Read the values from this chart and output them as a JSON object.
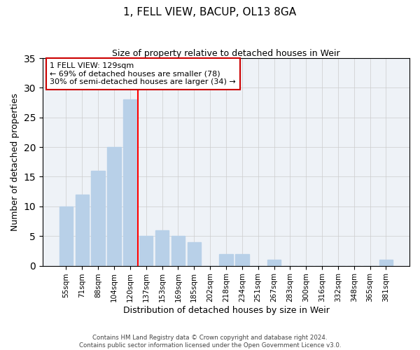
{
  "title": "1, FELL VIEW, BACUP, OL13 8GA",
  "subtitle": "Size of property relative to detached houses in Weir",
  "xlabel": "Distribution of detached houses by size in Weir",
  "ylabel": "Number of detached properties",
  "bar_color": "#b8d0e8",
  "bar_edge_color": "#b8d0e8",
  "vline_color": "red",
  "categories": [
    "55sqm",
    "71sqm",
    "88sqm",
    "104sqm",
    "120sqm",
    "137sqm",
    "153sqm",
    "169sqm",
    "185sqm",
    "202sqm",
    "218sqm",
    "234sqm",
    "251sqm",
    "267sqm",
    "283sqm",
    "300sqm",
    "316sqm",
    "332sqm",
    "348sqm",
    "365sqm",
    "381sqm"
  ],
  "values": [
    10,
    12,
    16,
    20,
    28,
    5,
    6,
    5,
    4,
    0,
    2,
    2,
    0,
    1,
    0,
    0,
    0,
    0,
    0,
    0,
    1
  ],
  "ylim": [
    0,
    35
  ],
  "yticks": [
    0,
    5,
    10,
    15,
    20,
    25,
    30,
    35
  ],
  "annotation_title": "1 FELL VIEW: 129sqm",
  "annotation_line1": "← 69% of detached houses are smaller (78)",
  "annotation_line2": "30% of semi-detached houses are larger (34) →",
  "annotation_box_facecolor": "white",
  "annotation_box_edgecolor": "#cc0000",
  "footnote1": "Contains HM Land Registry data © Crown copyright and database right 2024.",
  "footnote2": "Contains public sector information licensed under the Open Government Licence v3.0.",
  "bg_color": "#f0f4f8"
}
